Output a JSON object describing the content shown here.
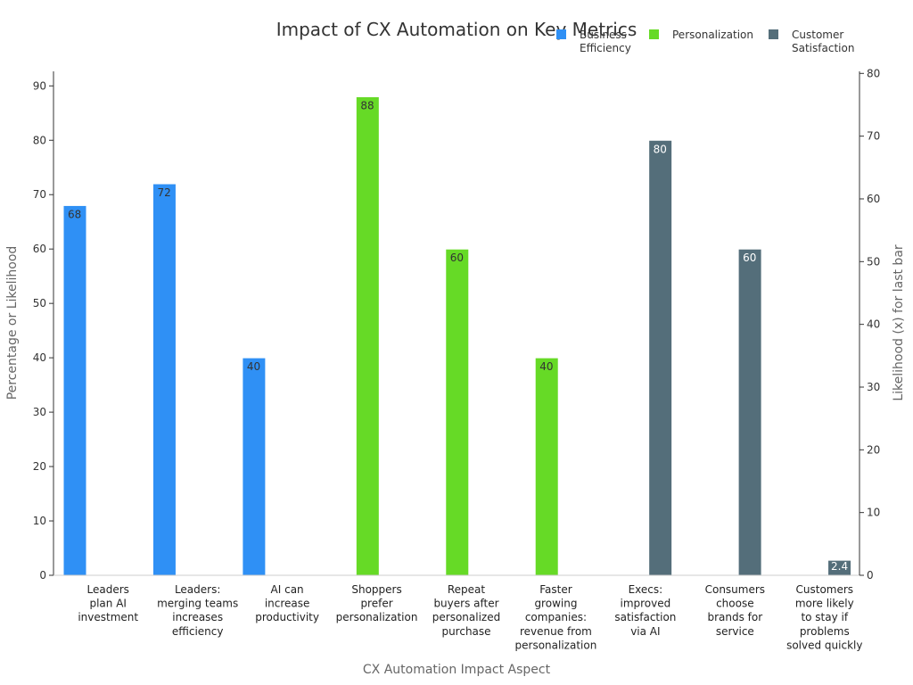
{
  "chart_data": {
    "type": "bar",
    "title": "Impact of CX Automation on Key Metrics",
    "xlabel": "CX Automation Impact Aspect",
    "ylabel": "Percentage or Likelihood",
    "y2label": "Likelihood (x) for last bar",
    "ylim": [
      0,
      90
    ],
    "y2lim": [
      0,
      80
    ],
    "yticks": [
      0,
      10,
      20,
      30,
      40,
      50,
      60,
      70,
      80,
      90
    ],
    "y2ticks": [
      0,
      10,
      20,
      30,
      40,
      50,
      60,
      70,
      80
    ],
    "grid": false,
    "legend_placement": "top-right",
    "categories": [
      [
        "Leaders",
        "plan AI",
        "investment"
      ],
      [
        "Leaders:",
        "merging teams",
        "increases",
        "efficiency"
      ],
      [
        "AI can",
        "increase",
        "productivity"
      ],
      [
        "Shoppers",
        "prefer",
        "personalization"
      ],
      [
        "Repeat",
        "buyers after",
        "personalized",
        "purchase"
      ],
      [
        "Faster",
        "growing",
        "companies:",
        "revenue from",
        "personalization"
      ],
      [
        "Execs:",
        "improved",
        "satisfaction",
        "via AI"
      ],
      [
        "Consumers",
        "choose",
        "brands for",
        "service"
      ],
      [
        "Customers",
        "more likely",
        "to stay if",
        "problems",
        "solved quickly"
      ]
    ],
    "series": [
      {
        "name": "Business Efficiency",
        "legend_lines": [
          "Business",
          "Efficiency"
        ],
        "color": "#2f90f5",
        "label_color": "#333333",
        "axis": "left",
        "values": [
          68,
          72,
          40,
          null,
          null,
          null,
          null,
          null,
          null
        ]
      },
      {
        "name": "Personalization",
        "legend_lines": [
          "Personalization"
        ],
        "color": "#66da26",
        "label_color": "#333333",
        "axis": "left",
        "values": [
          null,
          null,
          null,
          88,
          60,
          40,
          null,
          null,
          null
        ]
      },
      {
        "name": "Customer Satisfaction",
        "legend_lines": [
          "Customer",
          "Satisfaction"
        ],
        "color": "#546e7a",
        "label_color": "#ffffff",
        "axis": "left",
        "values": [
          null,
          null,
          null,
          null,
          null,
          null,
          80,
          60,
          null
        ]
      },
      {
        "name": "Customer Satisfaction (x)",
        "color": "#546e7a",
        "label_color": "#ffffff",
        "axis": "right",
        "values": [
          null,
          null,
          null,
          null,
          null,
          null,
          null,
          null,
          2.4
        ]
      }
    ]
  }
}
